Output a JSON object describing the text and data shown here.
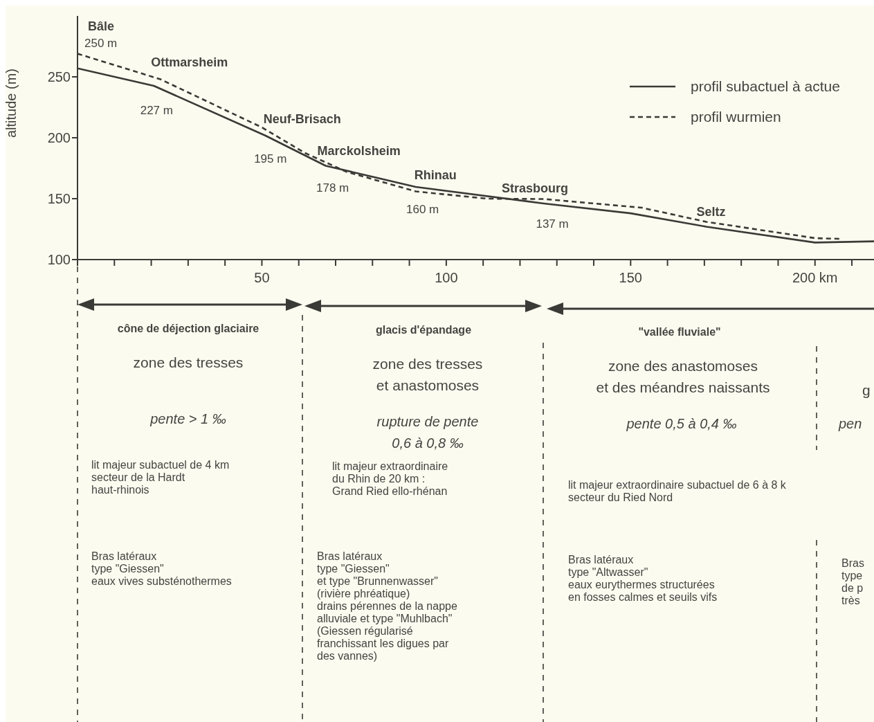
{
  "chart_data": {
    "type": "line",
    "ylabel": "altitude (m)",
    "xlim": [
      0,
      216
    ],
    "ylim": [
      100,
      300
    ],
    "xticks": [
      {
        "value": 0,
        "label": null
      },
      {
        "value": 10,
        "label": null
      },
      {
        "value": 20,
        "label": null
      },
      {
        "value": 30,
        "label": null
      },
      {
        "value": 40,
        "label": null
      },
      50,
      {
        "value": 60,
        "label": null
      },
      {
        "value": 70,
        "label": null
      },
      {
        "value": 80,
        "label": null
      },
      {
        "value": 90,
        "label": null
      },
      100,
      {
        "value": 110,
        "label": null
      },
      {
        "value": 120,
        "label": null
      },
      {
        "value": 130,
        "label": null
      },
      {
        "value": 140,
        "label": null
      },
      150,
      {
        "value": 160,
        "label": null
      },
      {
        "value": 170,
        "label": null
      },
      {
        "value": 180,
        "label": null
      },
      {
        "value": 190,
        "label": null
      },
      {
        "value": 200,
        "label": "200 km"
      },
      {
        "value": 210,
        "label": null
      }
    ],
    "yticks": [
      100,
      150,
      200,
      250
    ],
    "legend": "top right",
    "marker": "none",
    "series": [
      {
        "name": "profil subactuel à actue",
        "color": "#3a3a36",
        "line_style": "solid",
        "x": [
          0,
          20.7,
          51,
          67.3,
          91.7,
          126.5,
          150,
          170.5,
          200,
          216
        ],
        "values": [
          257,
          242.6,
          201.7,
          177,
          159.7,
          146,
          138,
          127,
          114,
          115
        ]
      },
      {
        "name": "profil wurmien",
        "color": "#3a3a36",
        "line_style": "dashed",
        "x": [
          0,
          22.5,
          50,
          61.7,
          73,
          91.7,
          111,
          126.5,
          153,
          170.5,
          200,
          207
        ],
        "values": [
          269,
          248,
          208.5,
          187.5,
          172,
          156,
          150,
          149.7,
          142.6,
          131,
          117.6,
          117
        ]
      }
    ],
    "annotations": [
      {
        "text": "Bâle",
        "x": 0,
        "y": 257
      },
      {
        "text": "250 m",
        "x": 0,
        "y": 257
      },
      {
        "text": "Ottmarsheim",
        "x": 20.7,
        "y": 242.6
      },
      {
        "text": "227 m",
        "x": 20.7,
        "y": 242.6
      },
      {
        "text": "Neuf-Brisach",
        "x": 51,
        "y": 201.7
      },
      {
        "text": "195 m",
        "x": 51,
        "y": 201.7
      },
      {
        "text": "Marckolsheim",
        "x": 67.3,
        "y": 177
      },
      {
        "text": "178 m",
        "x": 67.3,
        "y": 177
      },
      {
        "text": "Rhinau",
        "x": 91.7,
        "y": 159.7
      },
      {
        "text": "160 m",
        "x": 91.7,
        "y": 159.7
      },
      {
        "text": "Strasbourg",
        "x": 126.5,
        "y": 146
      },
      {
        "text": "137 m",
        "x": 126.5,
        "y": 146
      },
      {
        "text": "Seltz",
        "x": 170.5,
        "y": 127
      },
      "cône de déjection glaciaire",
      "zone des tresses",
      "pente > 1 ‰",
      "lit majeur subactuel de 4 km\nsecteur de la Hardt\nhaut-rhinois",
      "Bras latéraux\ntype \"Giessen\"\neaux vives substénothermes",
      "glacis d'épandage",
      "zone des tresses\net anastomoses",
      "rupture de pente\n0,6 à 0,8 ‰",
      "lit majeur extraordinaire\ndu Rhin de 20 km :\nGrand Ried ello-rhénan",
      "Bras latéraux\ntype \"Giessen\"\net type \"Brunnenwasser\"\n(rivière phréatique)\ndrains pérennes de la nappe\nalluviale et type \"Muhlbach\"\n(Giessen régularisé\nfranchissant les digues par\ndes vannes)",
      "\"vallée fluviale\"",
      "zone des anastomoses\net des méandres naissants",
      "pente 0,5 à 0,4 ‰",
      "lit majeur extraordinaire subactuel de 6 à 8 k\nsecteur du Ried Nord",
      "Bras latéraux\ntype \"Altwasser\"\neaux eurythermes structurées\nen fosses calmes et seuils vifs",
      "g",
      "pen",
      "Bras\ntype\nde p\ntrès"
    ]
  }
}
